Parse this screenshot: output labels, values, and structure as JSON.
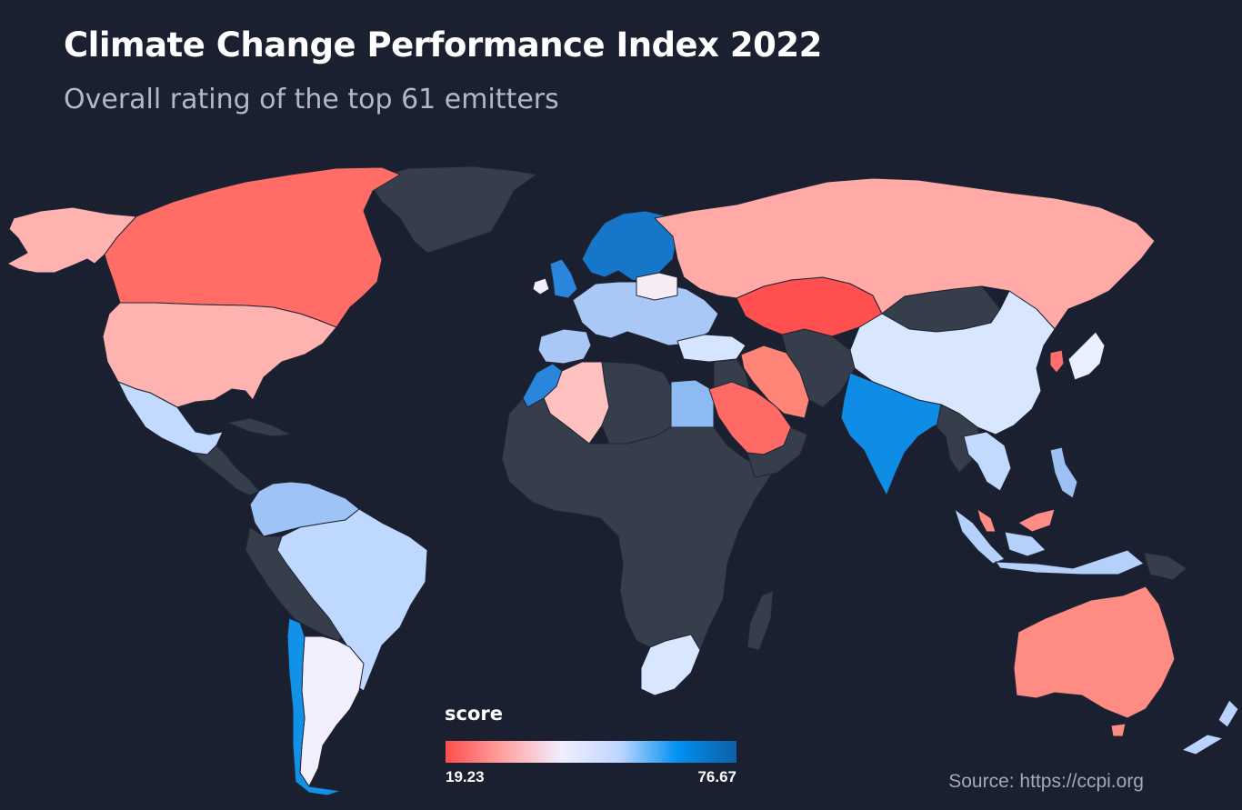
{
  "title": "Climate Change Performance Index 2022",
  "subtitle": "Overall rating of the top 61 emitters",
  "legend": {
    "title": "score",
    "min_label": "19.23",
    "max_label": "76.67",
    "min": 19.23,
    "max": 76.67,
    "colors": [
      "#ff4d4d",
      "#ffa3a3",
      "#f2eeff",
      "#bcd6ff",
      "#0090f0",
      "#0d5fa5"
    ]
  },
  "source": "Source: https://ccpi.org",
  "colors": {
    "background": "#1a2030",
    "no_data": "#363d4b",
    "borders": "#1f2533"
  },
  "map_data": {
    "type": "choropleth",
    "metric": "score",
    "regions": [
      {
        "name": "Canada",
        "color": "#ff6d66"
      },
      {
        "name": "United States",
        "color": "#ffb3b0"
      },
      {
        "name": "Alaska",
        "color": "#ffb3b0"
      },
      {
        "name": "Mexico",
        "color": "#c2daff"
      },
      {
        "name": "Colombia",
        "color": "#9ec3f7"
      },
      {
        "name": "Brazil",
        "color": "#bfd8ff"
      },
      {
        "name": "Argentina",
        "color": "#f3efff"
      },
      {
        "name": "Chile",
        "color": "#1192e8"
      },
      {
        "name": "Greenland",
        "color": "#363d4b"
      },
      {
        "name": "Scandinavia",
        "color": "#1676c9"
      },
      {
        "name": "United Kingdom",
        "color": "#2a86dc"
      },
      {
        "name": "Western Europe",
        "color": "#a9c8f5"
      },
      {
        "name": "Spain",
        "color": "#a9c8f5"
      },
      {
        "name": "Morocco",
        "color": "#2a86dc"
      },
      {
        "name": "Algeria",
        "color": "#ffc0c0"
      },
      {
        "name": "Egypt",
        "color": "#8cbaf3"
      },
      {
        "name": "Turkey",
        "color": "#d6e5ff"
      },
      {
        "name": "Russia",
        "color": "#ffaaa6"
      },
      {
        "name": "Kazakhstan",
        "color": "#ff4f4f"
      },
      {
        "name": "Iran",
        "color": "#ff8478"
      },
      {
        "name": "Saudi Arabia",
        "color": "#ff6a66"
      },
      {
        "name": "India",
        "color": "#0f8ce6"
      },
      {
        "name": "China",
        "color": "#d8e7ff"
      },
      {
        "name": "Japan",
        "color": "#e8f0ff"
      },
      {
        "name": "South Korea",
        "color": "#ff6f6f"
      },
      {
        "name": "Thailand",
        "color": "#c2daff"
      },
      {
        "name": "Indonesia",
        "color": "#b5d0fa"
      },
      {
        "name": "Malaysia",
        "color": "#ff8c86"
      },
      {
        "name": "Philippines",
        "color": "#9dc0f5"
      },
      {
        "name": "Australia",
        "color": "#ff8c82"
      },
      {
        "name": "New Zealand",
        "color": "#bad4ff"
      },
      {
        "name": "South Africa",
        "color": "#d9e6ff"
      }
    ]
  }
}
